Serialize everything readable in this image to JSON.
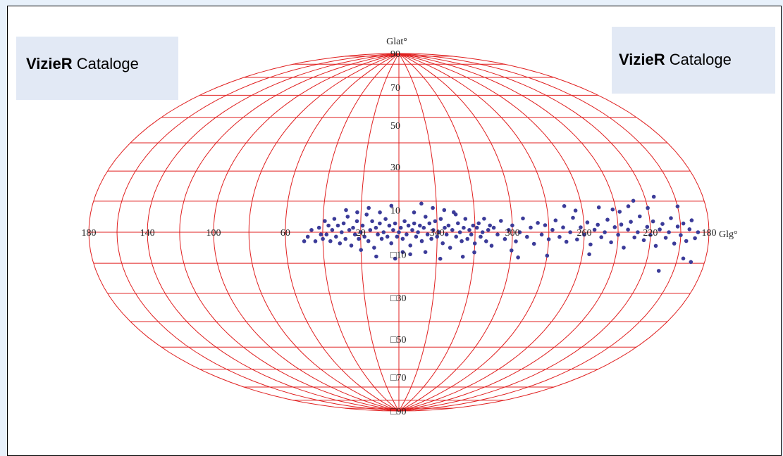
{
  "labels": {
    "left": {
      "bold": "VizieR",
      "rest": " Cataloge"
    },
    "right": {
      "bold": "VizieR",
      "rest": " Cataloge"
    }
  },
  "colors": {
    "grid": "#e02020",
    "points": "#3b3b99",
    "frame": "#000000"
  },
  "chart_data": {
    "type": "scatter",
    "projection": "Hammer-Aitoff (galactic)",
    "ylabel": "Glat°",
    "xlabel": "Glg°",
    "xlim": [
      180,
      -180
    ],
    "ylim": [
      -90,
      90
    ],
    "grid": true,
    "lon_tick_labels": [
      "180",
      "140",
      "100",
      "60",
      "20",
      "340",
      "300",
      "260",
      "220",
      "180"
    ],
    "lat_tick_labels": [
      "90",
      "70",
      "50",
      "30",
      "10",
      "□10",
      "□30",
      "□50",
      "□70",
      "□90"
    ],
    "series": [
      {
        "marker": "filled-circle",
        "points": [
          [
            38,
            -1
          ],
          [
            37,
            3
          ],
          [
            36,
            -4
          ],
          [
            35,
            1
          ],
          [
            34,
            6
          ],
          [
            33,
            -2
          ],
          [
            32,
            3
          ],
          [
            31,
            -5
          ],
          [
            30,
            0
          ],
          [
            29,
            4
          ],
          [
            28,
            -3
          ],
          [
            27,
            7
          ],
          [
            26,
            1
          ],
          [
            25,
            -6
          ],
          [
            24,
            2
          ],
          [
            23,
            -1
          ],
          [
            22,
            5
          ],
          [
            21,
            -3
          ],
          [
            20,
            0
          ],
          [
            19,
            3
          ],
          [
            18,
            -2
          ],
          [
            17,
            8
          ],
          [
            16,
            -4
          ],
          [
            15,
            1
          ],
          [
            14,
            5
          ],
          [
            13,
            -7
          ],
          [
            12,
            2
          ],
          [
            11,
            -1
          ],
          [
            10,
            4
          ],
          [
            9,
            -3
          ],
          [
            8,
            0
          ],
          [
            7,
            6
          ],
          [
            6,
            -2
          ],
          [
            5,
            3
          ],
          [
            4,
            -5
          ],
          [
            3,
            1
          ],
          [
            2,
            4
          ],
          [
            1,
            -2
          ],
          [
            0,
            0
          ],
          [
            -1,
            2
          ],
          [
            -2,
            -3
          ],
          [
            -3,
            5
          ],
          [
            -4,
            -1
          ],
          [
            -5,
            3
          ],
          [
            -6,
            -6
          ],
          [
            -7,
            1
          ],
          [
            -8,
            4
          ],
          [
            -9,
            -2
          ],
          [
            -10,
            0
          ],
          [
            -11,
            3
          ],
          [
            -12,
            -4
          ],
          [
            -13,
            2
          ],
          [
            -14,
            7
          ],
          [
            -15,
            -1
          ],
          [
            -16,
            4
          ],
          [
            -17,
            -3
          ],
          [
            -18,
            1
          ],
          [
            -19,
            5
          ],
          [
            -20,
            -2
          ],
          [
            -21,
            0
          ],
          [
            -22,
            6
          ],
          [
            -23,
            -5
          ],
          [
            -24,
            2
          ],
          [
            -25,
            -1
          ],
          [
            -26,
            3
          ],
          [
            -27,
            -7
          ],
          [
            -28,
            1
          ],
          [
            -29,
            9
          ],
          [
            -30,
            -2
          ],
          [
            -31,
            4
          ],
          [
            -32,
            0
          ],
          [
            -33,
            -4
          ],
          [
            -34,
            2
          ],
          [
            -35,
            6
          ],
          [
            -36,
            -3
          ],
          [
            -37,
            1
          ],
          [
            -38,
            -1
          ],
          [
            -39,
            3
          ],
          [
            -40,
            -5
          ],
          [
            -41,
            2
          ],
          [
            -42,
            4
          ],
          [
            -43,
            -2
          ],
          [
            -44,
            0
          ],
          [
            -45,
            6
          ],
          [
            -46,
            -4
          ],
          [
            -47,
            1
          ],
          [
            -48,
            3
          ],
          [
            -49,
            -6
          ],
          [
            -50,
            2
          ],
          [
            -52,
            -1
          ],
          [
            -54,
            5
          ],
          [
            -56,
            -3
          ],
          [
            -58,
            1
          ],
          [
            -60,
            3
          ],
          [
            -62,
            -4
          ],
          [
            -64,
            0
          ],
          [
            -66,
            6
          ],
          [
            -68,
            -2
          ],
          [
            -70,
            2
          ],
          [
            -72,
            -5
          ],
          [
            -74,
            4
          ],
          [
            -76,
            -1
          ],
          [
            -78,
            3
          ],
          [
            -80,
            -3
          ],
          [
            -82,
            1
          ],
          [
            -84,
            5
          ],
          [
            -86,
            -2
          ],
          [
            -88,
            2
          ],
          [
            -90,
            -4
          ],
          [
            -92,
            0
          ],
          [
            -94,
            6
          ],
          [
            -96,
            -3
          ],
          [
            -98,
            2
          ],
          [
            -100,
            -1
          ],
          [
            -102,
            4
          ],
          [
            -104,
            -5
          ],
          [
            -106,
            1
          ],
          [
            -108,
            3
          ],
          [
            -110,
            -2
          ],
          [
            -112,
            0
          ],
          [
            -114,
            5
          ],
          [
            -116,
            -4
          ],
          [
            -118,
            2
          ],
          [
            -120,
            -1
          ],
          [
            -122,
            3
          ],
          [
            -124,
            -6
          ],
          [
            -126,
            1
          ],
          [
            -128,
            4
          ],
          [
            -130,
            -2
          ],
          [
            -132,
            0
          ],
          [
            -134,
            6
          ],
          [
            -136,
            -3
          ],
          [
            -138,
            2
          ],
          [
            -140,
            -1
          ],
          [
            -142,
            4
          ],
          [
            -144,
            -5
          ],
          [
            -146,
            1
          ],
          [
            -148,
            3
          ],
          [
            -150,
            -2
          ],
          [
            -152,
            0
          ],
          [
            -154,
            5
          ],
          [
            -156,
            -4
          ],
          [
            -158,
            2
          ],
          [
            -160,
            -1
          ],
          [
            -162,
            3
          ],
          [
            -164,
            -3
          ],
          [
            -166,
            1
          ],
          [
            -168,
            4
          ],
          [
            -170,
            -2
          ],
          [
            -172,
            0
          ],
          [
            44,
            -4
          ],
          [
            46,
            1
          ],
          [
            48,
            -2
          ],
          [
            50,
            -4
          ],
          [
            42,
            2
          ],
          [
            40,
            -3
          ],
          [
            39,
            5
          ],
          [
            41,
            -1
          ],
          [
            -132,
            12
          ],
          [
            -140,
            9
          ],
          [
            -146,
            13
          ],
          [
            -160,
            9
          ],
          [
            -128,
            10
          ],
          [
            -122,
            8
          ],
          [
            -118,
            9
          ],
          [
            -110,
            10
          ],
          [
            -96,
            9
          ],
          [
            -90,
            11
          ],
          [
            -12,
            13
          ],
          [
            -18,
            11
          ],
          [
            -24,
            10
          ],
          [
            -30,
            8
          ],
          [
            -8,
            9
          ],
          [
            10,
            9
          ],
          [
            16,
            11
          ],
          [
            22,
            9
          ],
          [
            28,
            10
          ],
          [
            4,
            12
          ],
          [
            -14,
            -9
          ],
          [
            -22,
            -12
          ],
          [
            -6,
            -10
          ],
          [
            12,
            -11
          ],
          [
            20,
            -8
          ],
          [
            -40,
            -9
          ],
          [
            -60,
            -8
          ],
          [
            -80,
            -10
          ],
          [
            -104,
            -9
          ],
          [
            -150,
            -14
          ],
          [
            -170,
            -10
          ],
          [
            -164,
            -9
          ],
          [
            -64,
            -11
          ],
          [
            -34,
            -11
          ],
          [
            2,
            -12
          ],
          [
            -2,
            -9
          ]
        ]
      }
    ]
  }
}
